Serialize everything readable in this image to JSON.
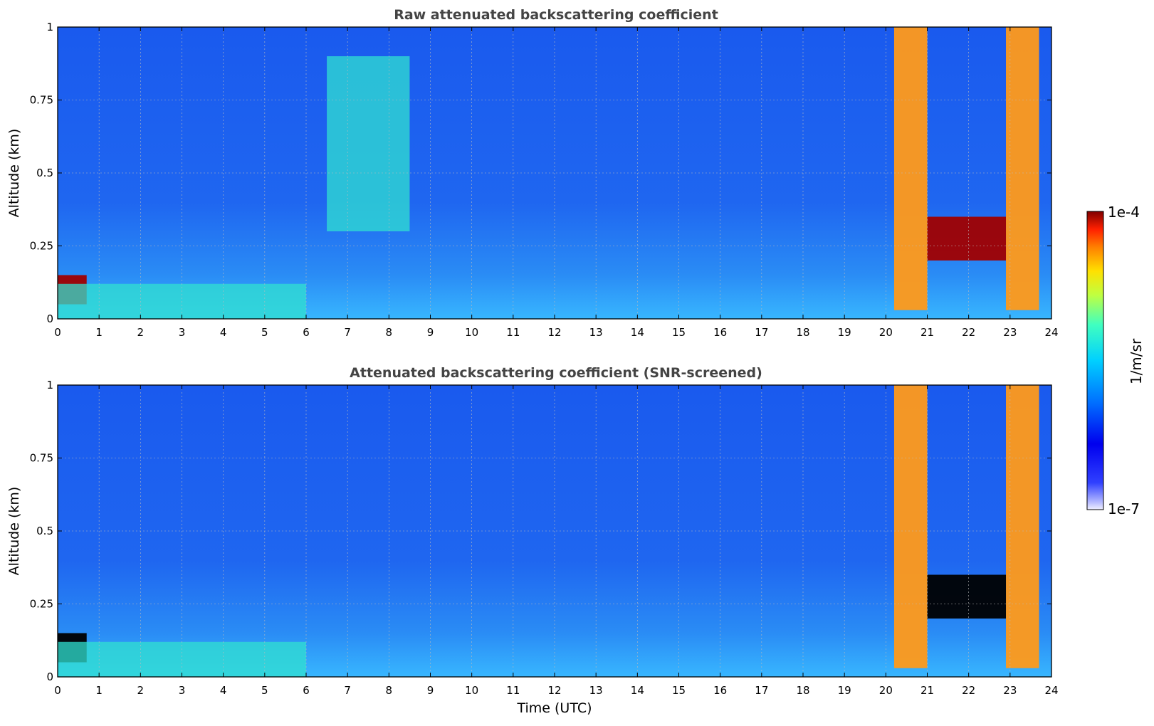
{
  "chart_data": [
    {
      "type": "heatmap",
      "title": "Raw attenuated backscattering coefficient",
      "xlabel": "",
      "ylabel": "Altitude (km)",
      "xlim": [
        0,
        24
      ],
      "ylim": [
        0,
        1
      ],
      "x_ticks": [
        "0",
        "1",
        "2",
        "3",
        "4",
        "5",
        "6",
        "7",
        "8",
        "9",
        "10",
        "11",
        "12",
        "13",
        "14",
        "15",
        "16",
        "17",
        "18",
        "19",
        "20",
        "21",
        "22",
        "23",
        "24"
      ],
      "y_ticks": [
        "0",
        "0.25",
        "0.5",
        "0.75",
        "1"
      ],
      "grid": true,
      "features": [
        {
          "x_range": [
            20.2,
            21.0
          ],
          "y_range": [
            0.03,
            1.0
          ],
          "level": "high"
        },
        {
          "x_range": [
            22.9,
            23.7
          ],
          "y_range": [
            0.03,
            1.0
          ],
          "level": "high"
        },
        {
          "x_range": [
            21.0,
            22.9
          ],
          "y_range": [
            0.2,
            0.35
          ],
          "level": "very-high"
        },
        {
          "x_range": [
            0.0,
            0.7
          ],
          "y_range": [
            0.05,
            0.15
          ],
          "level": "very-high"
        },
        {
          "x_range": [
            0.0,
            6.0
          ],
          "y_range": [
            0.0,
            0.12
          ],
          "level": "medium"
        },
        {
          "x_range": [
            6.5,
            8.5
          ],
          "y_range": [
            0.3,
            0.9
          ],
          "level": "medium"
        }
      ]
    },
    {
      "type": "heatmap",
      "title": "Attenuated backscattering coefficient (SNR-screened)",
      "xlabel": "Time (UTC)",
      "ylabel": "Altitude (km)",
      "xlim": [
        0,
        24
      ],
      "ylim": [
        0,
        1
      ],
      "x_ticks": [
        "0",
        "1",
        "2",
        "3",
        "4",
        "5",
        "6",
        "7",
        "8",
        "9",
        "10",
        "11",
        "12",
        "13",
        "14",
        "15",
        "16",
        "17",
        "18",
        "19",
        "20",
        "21",
        "22",
        "23",
        "24"
      ],
      "y_ticks": [
        "0",
        "0.25",
        "0.5",
        "0.75",
        "1"
      ],
      "grid": true,
      "features": [
        {
          "x_range": [
            20.2,
            21.0
          ],
          "y_range": [
            0.03,
            1.0
          ],
          "level": "high"
        },
        {
          "x_range": [
            22.9,
            23.7
          ],
          "y_range": [
            0.03,
            1.0
          ],
          "level": "high"
        },
        {
          "x_range": [
            21.0,
            22.9
          ],
          "y_range": [
            0.2,
            0.35
          ],
          "level": "saturated"
        },
        {
          "x_range": [
            0.0,
            0.7
          ],
          "y_range": [
            0.05,
            0.15
          ],
          "level": "saturated"
        },
        {
          "x_range": [
            0.0,
            6.0
          ],
          "y_range": [
            0.0,
            0.12
          ],
          "level": "medium"
        }
      ]
    }
  ],
  "colorbar": {
    "label": "1/m/sr",
    "max_label": "1e-4",
    "min_label": "1e-7",
    "scale": "log",
    "range": [
      1e-07,
      0.0001
    ],
    "colormap": "jet"
  }
}
